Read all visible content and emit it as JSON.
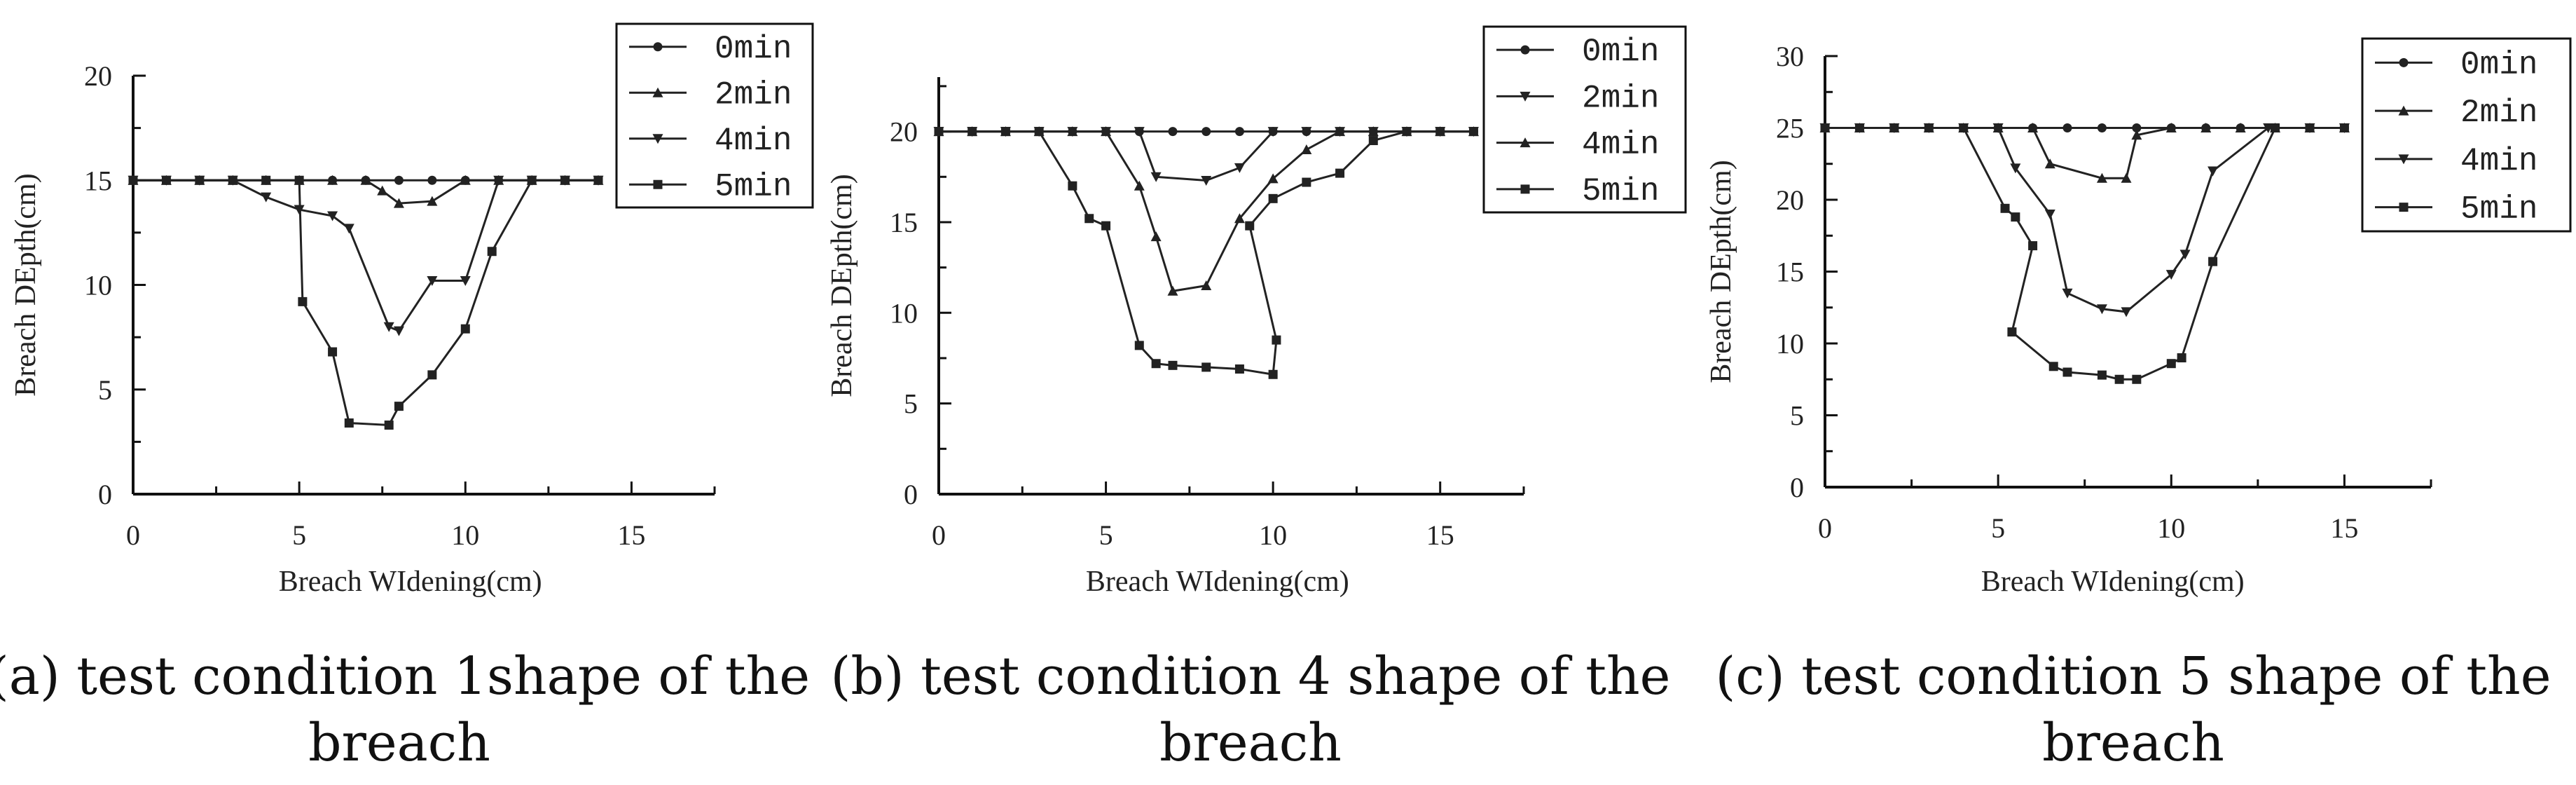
{
  "chart_data": [
    {
      "type": "line",
      "xlabel": "Breach WIdening(cm)",
      "ylabel": "Breach DEpth(cm)",
      "xlim": [
        0,
        17.5
      ],
      "ylim": [
        0,
        20
      ],
      "xticks": [
        0,
        5,
        10,
        15
      ],
      "yticks": [
        0,
        5,
        10,
        15,
        20
      ],
      "grid": false,
      "legend_position": "top-right",
      "caption_lines": [
        "(a) test condition 1shape of the",
        "breach"
      ],
      "series": [
        {
          "name": "0min",
          "marker": "circle",
          "x": [
            0,
            1,
            2,
            3,
            4,
            5,
            6,
            7,
            8,
            9,
            10,
            11,
            12,
            13,
            14
          ],
          "y": [
            15,
            15,
            15,
            15,
            15,
            15,
            15,
            15,
            15,
            15,
            15,
            15,
            15,
            15,
            15
          ]
        },
        {
          "name": "2min",
          "marker": "triangle-up",
          "x": [
            0,
            1,
            2,
            3,
            4,
            5,
            6,
            7,
            7.5,
            8,
            9,
            10,
            11,
            12,
            13,
            14
          ],
          "y": [
            15,
            15,
            15,
            15,
            15,
            15,
            15,
            15,
            14.5,
            13.9,
            14,
            15,
            15,
            15,
            15,
            15
          ]
        },
        {
          "name": "4min",
          "marker": "triangle-down",
          "x": [
            0,
            1,
            2,
            3,
            4,
            5,
            6,
            6.5,
            7.7,
            8,
            9,
            10,
            11,
            12,
            13,
            14
          ],
          "y": [
            15,
            15,
            15,
            15,
            14.2,
            13.6,
            13.3,
            12.7,
            8,
            7.8,
            10.2,
            10.2,
            15,
            15,
            15,
            15
          ]
        },
        {
          "name": "5min",
          "marker": "square",
          "x": [
            0,
            1,
            2,
            3,
            4,
            5,
            5.1,
            6,
            6.5,
            7.7,
            8,
            9,
            10,
            10.8,
            12,
            13,
            14
          ],
          "y": [
            15,
            15,
            15,
            15,
            15,
            15,
            9.2,
            6.8,
            3.4,
            3.3,
            4.2,
            5.7,
            7.9,
            11.6,
            15,
            15,
            15
          ]
        }
      ]
    },
    {
      "type": "line",
      "xlabel": "Breach WIdening(cm)",
      "ylabel": "Breach DEpth(cm)",
      "xlim": [
        0,
        17.5
      ],
      "ylim": [
        0,
        23
      ],
      "xticks": [
        0,
        5,
        10,
        15
      ],
      "yticks": [
        0,
        5,
        10,
        15,
        20
      ],
      "grid": false,
      "legend_position": "top-right",
      "caption_lines": [
        "(b) test condition 4 shape of the",
        "breach"
      ],
      "series": [
        {
          "name": "0min",
          "marker": "circle",
          "x": [
            0,
            1,
            2,
            3,
            4,
            5,
            6,
            7,
            8,
            9,
            10,
            11,
            12,
            13,
            14,
            15,
            16
          ],
          "y": [
            20,
            20,
            20,
            20,
            20,
            20,
            20,
            20,
            20,
            20,
            20,
            20,
            20,
            20,
            20,
            20,
            20
          ]
        },
        {
          "name": "2min",
          "marker": "triangle-down",
          "x": [
            0,
            1,
            2,
            3,
            4,
            5,
            6,
            6.5,
            8,
            9,
            10,
            11,
            12,
            13,
            14,
            15,
            16
          ],
          "y": [
            20,
            20,
            20,
            20,
            20,
            20,
            20,
            17.5,
            17.3,
            18,
            20,
            20,
            20,
            20,
            20,
            20,
            20
          ]
        },
        {
          "name": "4min",
          "marker": "triangle-up",
          "x": [
            0,
            1,
            2,
            3,
            4,
            5,
            6,
            6.5,
            7,
            8,
            9,
            10,
            11,
            12,
            13,
            14,
            15,
            16
          ],
          "y": [
            20,
            20,
            20,
            20,
            20,
            20,
            17,
            14.2,
            11.2,
            11.5,
            15.2,
            17.4,
            19,
            20,
            20,
            20,
            20,
            20
          ]
        },
        {
          "name": "5min",
          "marker": "square",
          "x": [
            0,
            1,
            2,
            3,
            4,
            4.5,
            5,
            6,
            6.5,
            7,
            8,
            9,
            10,
            10.1,
            9.3,
            10,
            11,
            12,
            13,
            14,
            15,
            16
          ],
          "y": [
            20,
            20,
            20,
            20,
            17,
            15.2,
            14.8,
            8.2,
            7.2,
            7.1,
            7,
            6.9,
            6.6,
            8.5,
            14.8,
            16.3,
            17.2,
            17.7,
            19.5,
            20,
            20,
            20
          ]
        }
      ]
    },
    {
      "type": "line",
      "xlabel": "Breach WIdening(cm)",
      "ylabel": "Breach DEpth(cm)",
      "xlim": [
        0,
        17.5
      ],
      "ylim": [
        0,
        30
      ],
      "xticks": [
        0,
        5,
        10,
        15
      ],
      "yticks": [
        0,
        5,
        10,
        15,
        20,
        25,
        30
      ],
      "grid": false,
      "legend_position": "top-right",
      "caption_lines": [
        "(c) test condition 5 shape of the",
        "breach"
      ],
      "series": [
        {
          "name": "0min",
          "marker": "circle",
          "x": [
            0,
            1,
            2,
            3,
            4,
            5,
            6,
            7,
            8,
            9,
            10,
            11,
            12,
            13,
            14,
            15
          ],
          "y": [
            25,
            25,
            25,
            25,
            25,
            25,
            25,
            25,
            25,
            25,
            25,
            25,
            25,
            25,
            25,
            25
          ]
        },
        {
          "name": "2min",
          "marker": "triangle-up",
          "x": [
            0,
            1,
            2,
            3,
            4,
            5,
            6,
            6.5,
            8,
            8.7,
            9,
            10,
            11,
            12,
            13,
            14,
            15
          ],
          "y": [
            25,
            25,
            25,
            25,
            25,
            25,
            25,
            22.5,
            21.5,
            21.5,
            24.5,
            25,
            25,
            25,
            25,
            25,
            25
          ]
        },
        {
          "name": "4min",
          "marker": "triangle-down",
          "x": [
            0,
            1,
            2,
            3,
            4,
            5,
            5.5,
            6.5,
            7,
            8,
            8.7,
            10,
            10.4,
            11.2,
            12.8,
            14,
            15
          ],
          "y": [
            25,
            25,
            25,
            25,
            25,
            25,
            22.2,
            19,
            13.5,
            12.4,
            12.2,
            14.8,
            16.2,
            22,
            25,
            25,
            25
          ]
        },
        {
          "name": "5min",
          "marker": "square",
          "x": [
            0,
            1,
            2,
            3,
            4,
            5.2,
            5.5,
            6,
            5.4,
            6.6,
            7,
            8,
            8.5,
            9,
            10,
            10.3,
            11.2,
            13,
            14,
            15
          ],
          "y": [
            25,
            25,
            25,
            25,
            25,
            19.4,
            18.8,
            16.8,
            10.8,
            8.4,
            8,
            7.8,
            7.5,
            7.5,
            8.6,
            9,
            15.7,
            25,
            25,
            25
          ]
        }
      ]
    }
  ]
}
